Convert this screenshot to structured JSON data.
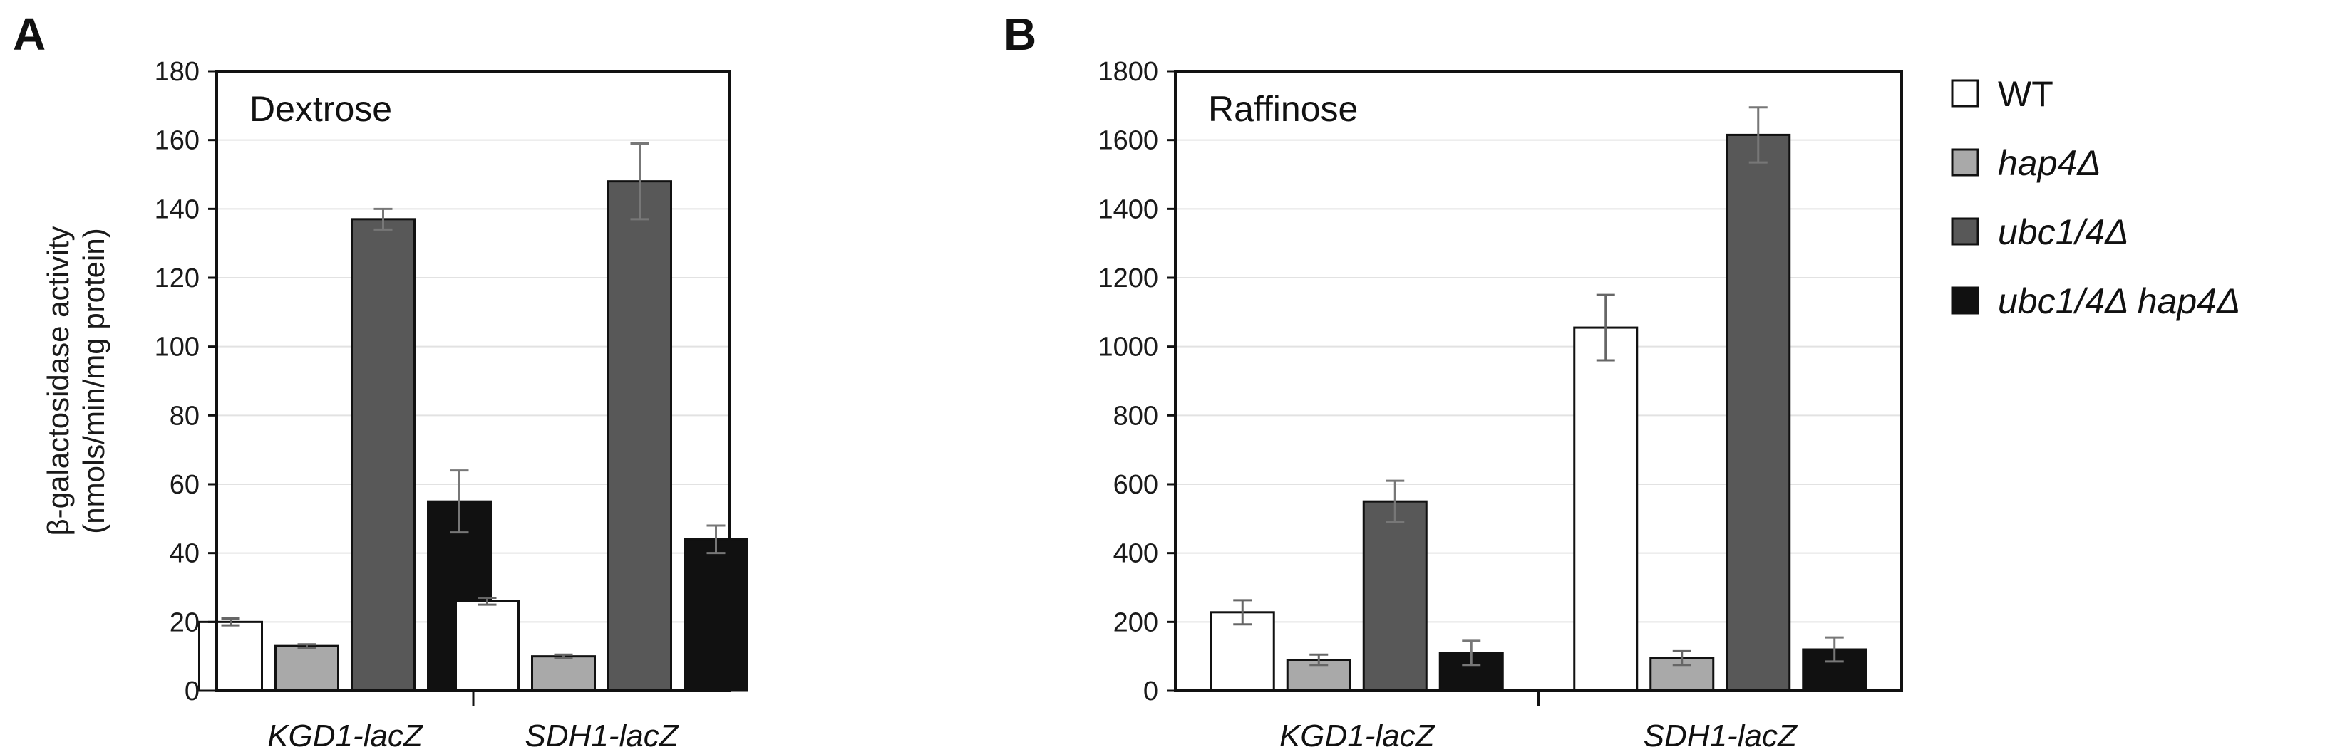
{
  "legend": [
    {
      "label": "WT",
      "italic": false,
      "color": "#ffffff"
    },
    {
      "label": "hap4Δ",
      "italic": true,
      "color": "#a9a9a9"
    },
    {
      "label": "ubc1/4Δ",
      "italic": true,
      "color": "#585858"
    },
    {
      "label": "ubc1/4Δ hap4Δ",
      "italic": true,
      "color": "#111111"
    }
  ],
  "chart_data": [
    {
      "type": "bar",
      "panel": "A",
      "title": "Dextrose",
      "ylabel_line1": "β-galactosidase activity",
      "ylabel_line2": "(nmols/min/mg protein)",
      "xlabel": "",
      "ylim": [
        0,
        180
      ],
      "yticks": [
        0,
        20,
        40,
        60,
        80,
        100,
        120,
        140,
        160,
        180
      ],
      "ytick_labels": [
        "0",
        "20",
        "40",
        "60",
        "80",
        "100",
        "120",
        "140",
        "160",
        "180"
      ],
      "grid": true,
      "categories": [
        "KGD1-lacZ",
        "SDH1-lacZ"
      ],
      "series": [
        {
          "name": "WT",
          "values": [
            20,
            26
          ],
          "errors": [
            1,
            1
          ]
        },
        {
          "name": "hap4Δ",
          "values": [
            13,
            10
          ],
          "errors": [
            0.5,
            0.5
          ]
        },
        {
          "name": "ubc1/4Δ",
          "values": [
            137,
            148
          ],
          "errors": [
            3,
            11
          ]
        },
        {
          "name": "ubc1/4Δ hap4Δ",
          "values": [
            55,
            44
          ],
          "errors": [
            9,
            4
          ]
        }
      ]
    },
    {
      "type": "bar",
      "panel": "B",
      "title": "Raffinose",
      "xlabel": "",
      "ylabel": "",
      "ylim": [
        0,
        1800
      ],
      "yticks": [
        0,
        200,
        400,
        600,
        800,
        1000,
        1200,
        1400,
        1600,
        1800
      ],
      "ytick_labels": [
        "0",
        "200",
        "400",
        "600",
        "800",
        "1000",
        "1200",
        "1400",
        "1600",
        "1800"
      ],
      "grid": true,
      "categories": [
        "KGD1-lacZ",
        "SDH1-lacZ"
      ],
      "series": [
        {
          "name": "WT",
          "values": [
            228,
            1055
          ],
          "errors": [
            35,
            95
          ]
        },
        {
          "name": "hap4Δ",
          "values": [
            90,
            95
          ],
          "errors": [
            15,
            20
          ]
        },
        {
          "name": "ubc1/4Δ",
          "values": [
            550,
            1615
          ],
          "errors": [
            60,
            80
          ]
        },
        {
          "name": "ubc1/4Δ hap4Δ",
          "values": [
            110,
            120
          ],
          "errors": [
            35,
            35
          ]
        }
      ]
    }
  ]
}
